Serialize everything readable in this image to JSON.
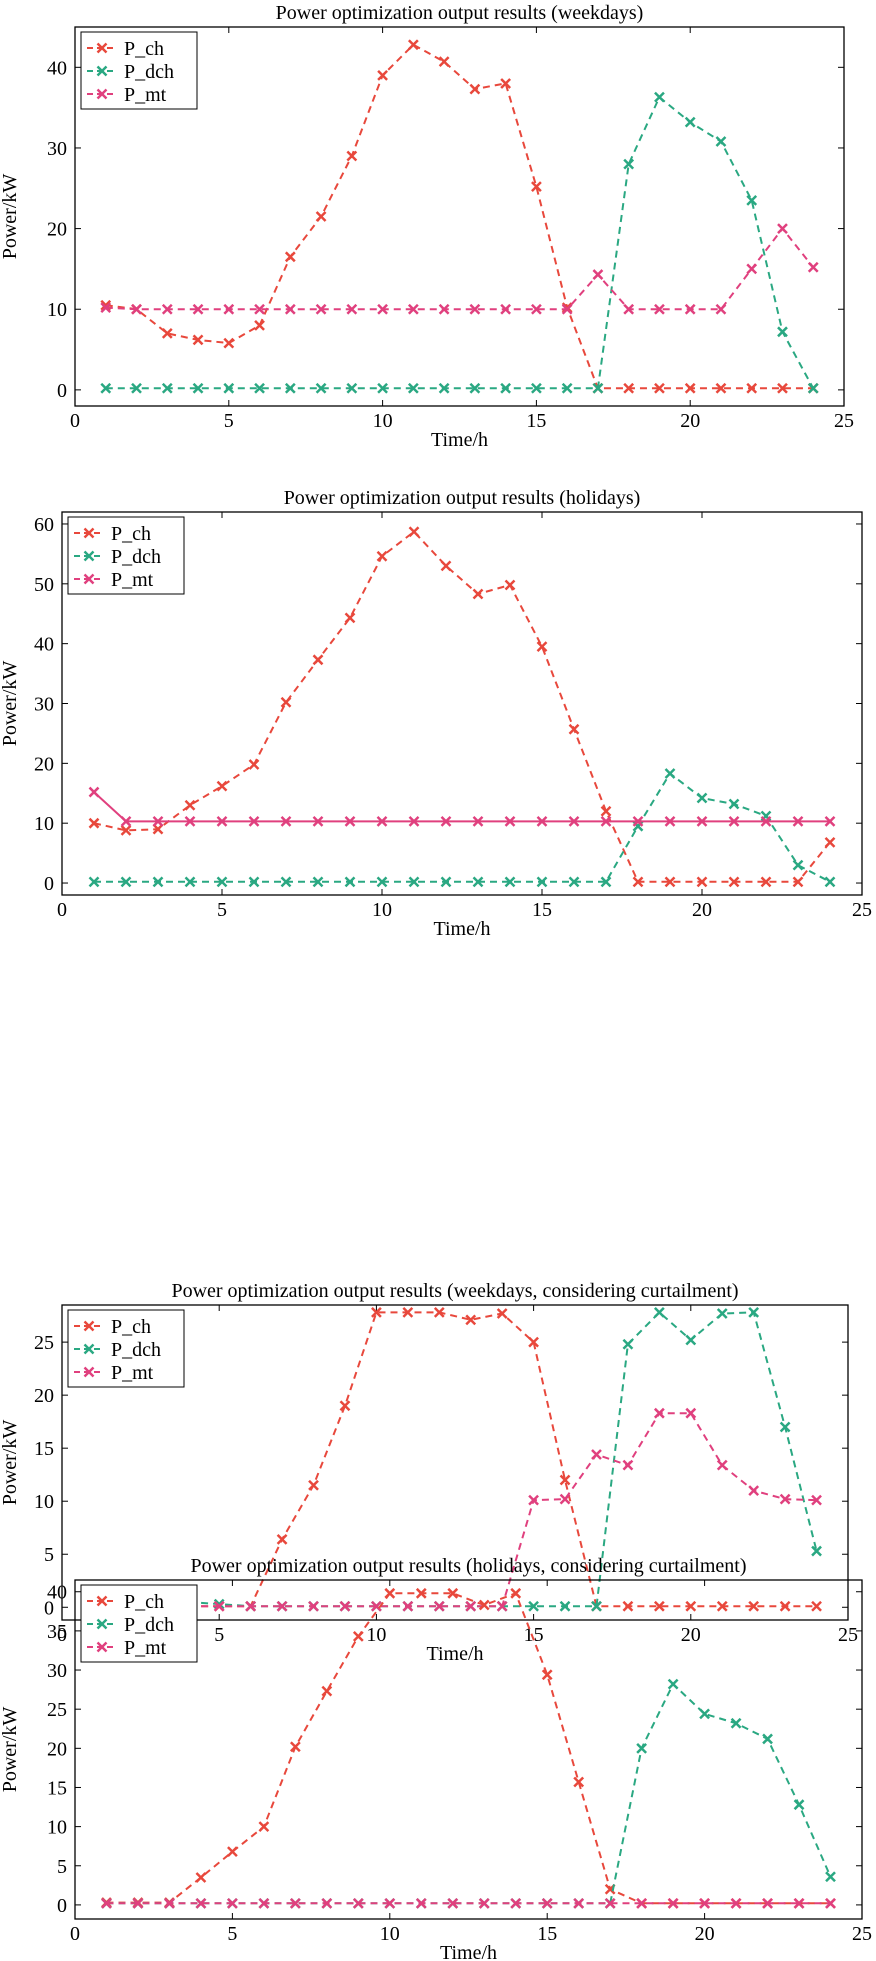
{
  "colors": {
    "P_ch": "#e8483c",
    "P_dch": "#2aa882",
    "P_mt": "#e0407e"
  },
  "chart_data": [
    {
      "type": "line",
      "title": "Power optimization output results (weekdays)",
      "xlabel": "Time/h",
      "ylabel": "Power/kW",
      "xlim": [
        0,
        25
      ],
      "ylim": [
        -2,
        45
      ],
      "xticks": [
        0,
        5,
        10,
        15,
        20,
        25
      ],
      "yticks": [
        0,
        10,
        20,
        30,
        40
      ],
      "legend": "top-left",
      "x": [
        1,
        2,
        3,
        4,
        5,
        6,
        7,
        8,
        9,
        10,
        11,
        12,
        13,
        14,
        15,
        16,
        17,
        18,
        19,
        20,
        21,
        22,
        23,
        24
      ],
      "series": [
        {
          "name": "P_ch",
          "values": [
            10.5,
            10,
            7,
            6.2,
            5.8,
            8,
            16.5,
            21.5,
            29,
            39,
            42.8,
            40.7,
            37.3,
            38,
            25.2,
            10.2,
            0.2,
            0.2,
            0.2,
            0.2,
            0.2,
            0.2,
            0.2,
            0.2
          ]
        },
        {
          "name": "P_dch",
          "values": [
            0.2,
            0.2,
            0.2,
            0.2,
            0.2,
            0.2,
            0.2,
            0.2,
            0.2,
            0.2,
            0.2,
            0.2,
            0.2,
            0.2,
            0.2,
            0.2,
            0.2,
            28,
            36.3,
            33.2,
            30.8,
            23.5,
            7.2,
            0.2
          ]
        },
        {
          "name": "P_mt",
          "values": [
            10.2,
            10,
            10,
            10,
            10,
            10,
            10,
            10,
            10,
            10,
            10,
            10,
            10,
            10,
            10,
            10,
            14.3,
            10,
            10,
            10,
            10,
            15,
            20,
            15.2
          ]
        }
      ]
    },
    {
      "type": "line",
      "title": "Power optimization output results (holidays)",
      "xlabel": "Time/h",
      "ylabel": "Power/kW",
      "xlim": [
        0,
        25
      ],
      "ylim": [
        -2,
        62
      ],
      "xticks": [
        0,
        5,
        10,
        15,
        20,
        25
      ],
      "yticks": [
        0,
        10,
        20,
        30,
        40,
        50,
        60
      ],
      "legend": "top-left",
      "x": [
        1,
        2,
        3,
        4,
        5,
        6,
        7,
        8,
        9,
        10,
        11,
        12,
        13,
        14,
        15,
        16,
        17,
        18,
        19,
        20,
        21,
        22,
        23,
        24
      ],
      "series": [
        {
          "name": "P_ch",
          "values": [
            10,
            8.8,
            9,
            13,
            16.2,
            19.8,
            30.2,
            37.3,
            44.3,
            54.6,
            58.7,
            53,
            48.3,
            49.8,
            39.5,
            25.7,
            12,
            0.2,
            0.2,
            0.2,
            0.2,
            0.2,
            0.2,
            6.8
          ]
        },
        {
          "name": "P_dch",
          "values": [
            0.2,
            0.2,
            0.2,
            0.2,
            0.2,
            0.2,
            0.2,
            0.2,
            0.2,
            0.2,
            0.2,
            0.2,
            0.2,
            0.2,
            0.2,
            0.2,
            0.2,
            9.5,
            18.3,
            14.2,
            13.2,
            11.2,
            3,
            0.2
          ]
        },
        {
          "name": "P_mt",
          "values": [
            15.2,
            10.3,
            10.3,
            10.3,
            10.3,
            10.3,
            10.3,
            10.3,
            10.3,
            10.3,
            10.3,
            10.3,
            10.3,
            10.3,
            10.3,
            10.3,
            10.3,
            10.3,
            10.3,
            10.3,
            10.3,
            10.3,
            10.3,
            10.3
          ]
        }
      ]
    },
    {
      "type": "line",
      "title": "Power optimization output results (weekdays, considering curtailment)",
      "xlabel": "Time/h",
      "ylabel": "Power/kW",
      "xlim": [
        0,
        25
      ],
      "ylim": [
        -1.2,
        28.5
      ],
      "xticks": [
        0,
        5,
        10,
        15,
        20,
        25
      ],
      "yticks": [
        0,
        5,
        10,
        15,
        20,
        25
      ],
      "legend": "top-left",
      "x": [
        1,
        2,
        3,
        4,
        5,
        6,
        7,
        8,
        9,
        10,
        11,
        12,
        13,
        14,
        15,
        16,
        17,
        18,
        19,
        20,
        21,
        22,
        23,
        24
      ],
      "series": [
        {
          "name": "P_ch",
          "values": [
            0.6,
            0.3,
            0.1,
            0.1,
            0.1,
            0.1,
            6.4,
            11.5,
            19,
            27.8,
            27.8,
            27.8,
            27.1,
            27.7,
            25,
            12,
            0.1,
            0.1,
            0.1,
            0.1,
            0.1,
            0.1,
            0.1,
            0.1
          ]
        },
        {
          "name": "P_dch",
          "values": [
            0.1,
            0.1,
            0.1,
            0.5,
            0.3,
            0.1,
            0.1,
            0.1,
            0.1,
            0.1,
            0.1,
            0.1,
            0.1,
            0.1,
            0.1,
            0.1,
            0.1,
            24.8,
            27.8,
            25.2,
            27.7,
            27.8,
            17,
            5.3
          ]
        },
        {
          "name": "P_mt",
          "values": [
            0.1,
            -0.2,
            0.1,
            0.1,
            0.1,
            0.1,
            0.1,
            0.1,
            0.1,
            0.1,
            0.1,
            0.1,
            0.1,
            0.1,
            10.1,
            10.2,
            14.4,
            13.4,
            18.3,
            18.3,
            13.4,
            11,
            10.2,
            10.1
          ]
        }
      ]
    },
    {
      "type": "line",
      "title": "Power optimization output results (holidays, considering curtailment)",
      "xlabel": "Time/h",
      "ylabel": "Power/kW",
      "xlim": [
        0,
        25
      ],
      "ylim": [
        -1.8,
        41.5
      ],
      "xticks": [
        0,
        5,
        10,
        15,
        20,
        25
      ],
      "yticks": [
        0,
        5,
        10,
        15,
        20,
        25,
        30,
        35,
        40
      ],
      "legend": "top-left",
      "x": [
        1,
        2,
        3,
        4,
        5,
        6,
        7,
        8,
        9,
        10,
        11,
        12,
        13,
        14,
        15,
        16,
        17,
        18,
        19,
        20,
        21,
        22,
        23,
        24
      ],
      "series": [
        {
          "name": "P_ch",
          "values": [
            0.3,
            0.3,
            0.3,
            3.5,
            6.8,
            10,
            20.2,
            27.3,
            34.3,
            39.8,
            39.8,
            39.8,
            38.3,
            39.8,
            29.4,
            15.7,
            2,
            0.2,
            0.2,
            0.2,
            0.2,
            0.2,
            0.2,
            0.2
          ]
        },
        {
          "name": "P_dch",
          "values": [
            0.2,
            0.2,
            0.2,
            0.2,
            0.2,
            0.2,
            0.2,
            0.2,
            0.2,
            0.2,
            0.2,
            0.2,
            0.2,
            0.2,
            0.2,
            0.2,
            0.2,
            20,
            28.2,
            24.4,
            23.2,
            21.2,
            12.8,
            3.6
          ]
        },
        {
          "name": "P_mt",
          "values": [
            0.2,
            0.2,
            0.2,
            0.2,
            0.2,
            0.2,
            0.2,
            0.2,
            0.2,
            0.2,
            0.2,
            0.2,
            0.2,
            0.2,
            0.2,
            0.2,
            0.2,
            0.2,
            0.2,
            0.2,
            0.2,
            0.2,
            0.2,
            0.2
          ]
        }
      ]
    }
  ]
}
